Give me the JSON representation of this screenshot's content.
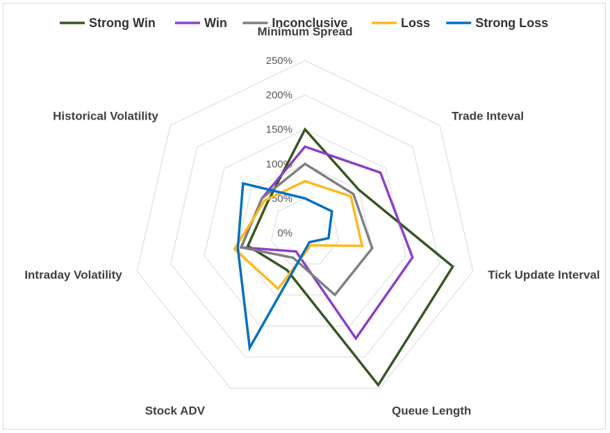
{
  "chart_data": {
    "type": "radar",
    "title": "",
    "axes": [
      "Minimum Spread",
      "Trade Inteval",
      "Tick Update Interval",
      "Queue Length",
      "Stock ADV",
      "Intraday Volatility",
      "Historical Volatility"
    ],
    "rlim": [
      0,
      250
    ],
    "ticks": [
      0,
      50,
      100,
      150,
      200,
      250
    ],
    "tick_labels": [
      "0%",
      "50%",
      "100%",
      "150%",
      "200%",
      "250%"
    ],
    "legend_position": "top",
    "series": [
      {
        "name": "Strong Win",
        "color": "#375623",
        "values": [
          150,
          100,
          220,
          245,
          60,
          85,
          70
        ]
      },
      {
        "name": "Win",
        "color": "#8b3fc7",
        "values": [
          125,
          140,
          160,
          170,
          30,
          95,
          80
        ]
      },
      {
        "name": "Inconclusive",
        "color": "#7f7f7f",
        "values": [
          100,
          90,
          100,
          100,
          40,
          95,
          80
        ]
      },
      {
        "name": "Loss",
        "color": "#ffb81c",
        "values": [
          75,
          85,
          85,
          20,
          90,
          105,
          75
        ]
      },
      {
        "name": "Strong Loss",
        "color": "#0070c0",
        "values": [
          50,
          50,
          35,
          15,
          185,
          100,
          115
        ]
      }
    ]
  }
}
